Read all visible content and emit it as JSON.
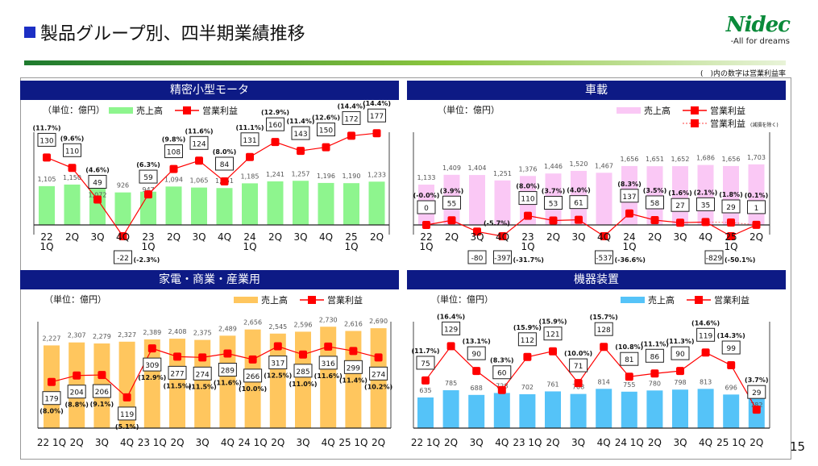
{
  "page": {
    "title": "製品グループ別、四半期業績推移",
    "logo_brand": "Nidec",
    "logo_tagline": "-All for dreams",
    "note": "(　)内の数字は営業利益率",
    "page_number": "15"
  },
  "chart_data": [
    {
      "type": "bar+line",
      "title": "精密小型モータ",
      "unit": "（単位：億円）",
      "legend": {
        "sales": "売上高",
        "profit": "営業利益"
      },
      "bar_color": "#8ef58e",
      "line_color": "#ff0000",
      "categories": [
        "22 1Q",
        "2Q",
        "3Q",
        "4Q",
        "23 1Q",
        "2Q",
        "3Q",
        "4Q",
        "24 1Q",
        "2Q",
        "3Q",
        "4Q",
        "25 1Q",
        "2Q"
      ],
      "sales": [
        1105,
        1150,
        1072,
        926,
        947,
        1094,
        1065,
        1051,
        1185,
        1241,
        1257,
        1196,
        1190,
        1233
      ],
      "profit": [
        130,
        110,
        49,
        -22,
        59,
        108,
        124,
        84,
        131,
        160,
        143,
        150,
        172,
        177
      ],
      "margin": [
        "(11.7%)",
        "(9.6%)",
        "(4.6%)",
        "(-2.3%)",
        "(6.3%)",
        "(9.8%)",
        "(11.6%)",
        "(8.0%)",
        "(11.1%)",
        "(12.9%)",
        "(11.4%)",
        "(12.6%)",
        "(14.4%)",
        "(14.4%)"
      ],
      "sales_ylim": [
        0,
        3100
      ],
      "profit_ylim": [
        -30,
        210
      ]
    },
    {
      "type": "bar+line",
      "title": "車載",
      "unit": "（単位：億円）",
      "legend": {
        "sales": "売上高",
        "profit": "営業利益",
        "profit_ex": "営業利益",
        "profit_ex_note": "(減損を除く)"
      },
      "bar_color": "#fac8f5",
      "line_color": "#ff0000",
      "categories": [
        "22 1Q",
        "2Q",
        "3Q",
        "4Q",
        "23 1Q",
        "2Q",
        "3Q",
        "4Q",
        "24 1Q",
        "2Q",
        "3Q",
        "4Q",
        "25 1Q",
        "2Q"
      ],
      "sales": [
        1133,
        1409,
        1404,
        1251,
        1376,
        1446,
        1520,
        1467,
        1656,
        1651,
        1652,
        1686,
        1656,
        1703
      ],
      "profit": [
        0,
        55,
        -80,
        -397,
        110,
        53,
        61,
        -537,
        137,
        58,
        27,
        35,
        -829,
        1
      ],
      "margin": [
        "(-0.0%)",
        "(3.9%)",
        "(-5.7%)",
        "(-31.7%)",
        "(8.0%)",
        "(3.7%)",
        "(4.0%)",
        "(-36.6%)",
        "(8.3%)",
        "(3.5%)",
        "(1.6%)",
        "(2.1%)",
        "(-50.1%)",
        "(0.1%)"
      ],
      "profit_ex_impairment": [
        null,
        null,
        null,
        null,
        null,
        null,
        null,
        null,
        null,
        null,
        null,
        35,
        29,
        1
      ],
      "margin_ex_impairment": [
        null,
        null,
        null,
        null,
        null,
        null,
        null,
        null,
        null,
        null,
        null,
        null,
        "(1.8%)",
        null
      ],
      "sales_ylim": [
        0,
        3060
      ],
      "profit_ylim": [
        -900,
        1300
      ]
    },
    {
      "type": "bar+line",
      "title": "家電・商業・産業用",
      "unit": "（単位：億円）",
      "legend": {
        "sales": "売上高",
        "profit": "営業利益"
      },
      "bar_color": "#ffc65e",
      "line_color": "#ff0000",
      "categories": [
        "22 1Q",
        "2Q",
        "3Q",
        "4Q",
        "23 1Q",
        "2Q",
        "3Q",
        "4Q",
        "24 1Q",
        "2Q",
        "3Q",
        "4Q",
        "25 1Q",
        "2Q"
      ],
      "sales": [
        2227,
        2307,
        2279,
        2327,
        2389,
        2408,
        2375,
        2489,
        2656,
        2545,
        2596,
        2730,
        2616,
        2690
      ],
      "profit": [
        179,
        204,
        206,
        119,
        309,
        277,
        274,
        289,
        266,
        317,
        285,
        316,
        299,
        274
      ],
      "margin": [
        "(8.0%)",
        "(8.8%)",
        "(9.1%)",
        "(5.1%)",
        "(12.9%)",
        "(11.5%)",
        "(11.5%)",
        "(11.6%)",
        "(10.0%)",
        "(12.5%)",
        "(11.0%)",
        "(11.6%)",
        "(11.4%)",
        "(10.2%)"
      ],
      "sales_ylim": [
        0,
        3300
      ],
      "profit_ylim": [
        0,
        475
      ]
    },
    {
      "type": "bar+line",
      "title": "機器装置",
      "unit": "（単位：億円）",
      "legend": {
        "sales": "売上高",
        "profit": "営業利益"
      },
      "bar_color": "#55c3f8",
      "line_color": "#ff0000",
      "categories": [
        "22 1Q",
        "2Q",
        "3Q",
        "4Q",
        "23 1Q",
        "2Q",
        "3Q",
        "4Q",
        "24 1Q",
        "2Q",
        "3Q",
        "4Q",
        "25 1Q",
        "2Q"
      ],
      "sales": [
        635,
        785,
        688,
        728,
        702,
        761,
        708,
        814,
        755,
        780,
        798,
        813,
        696,
        782
      ],
      "profit": [
        75,
        129,
        90,
        60,
        112,
        121,
        71,
        128,
        81,
        86,
        90,
        119,
        99,
        29
      ],
      "margin": [
        "(11.7%)",
        "(16.4%)",
        "(13.1%)",
        "(8.3%)",
        "(15.9%)",
        "(15.9%)",
        "(10.0%)",
        "(15.7%)",
        "(10.8%)",
        "(11.1%)",
        "(11.3%)",
        "(14.6%)",
        "(14.3%)",
        "(3.7%)"
      ],
      "sales_ylim": [
        0,
        2540
      ],
      "profit_ylim": [
        0,
        193
      ]
    }
  ]
}
